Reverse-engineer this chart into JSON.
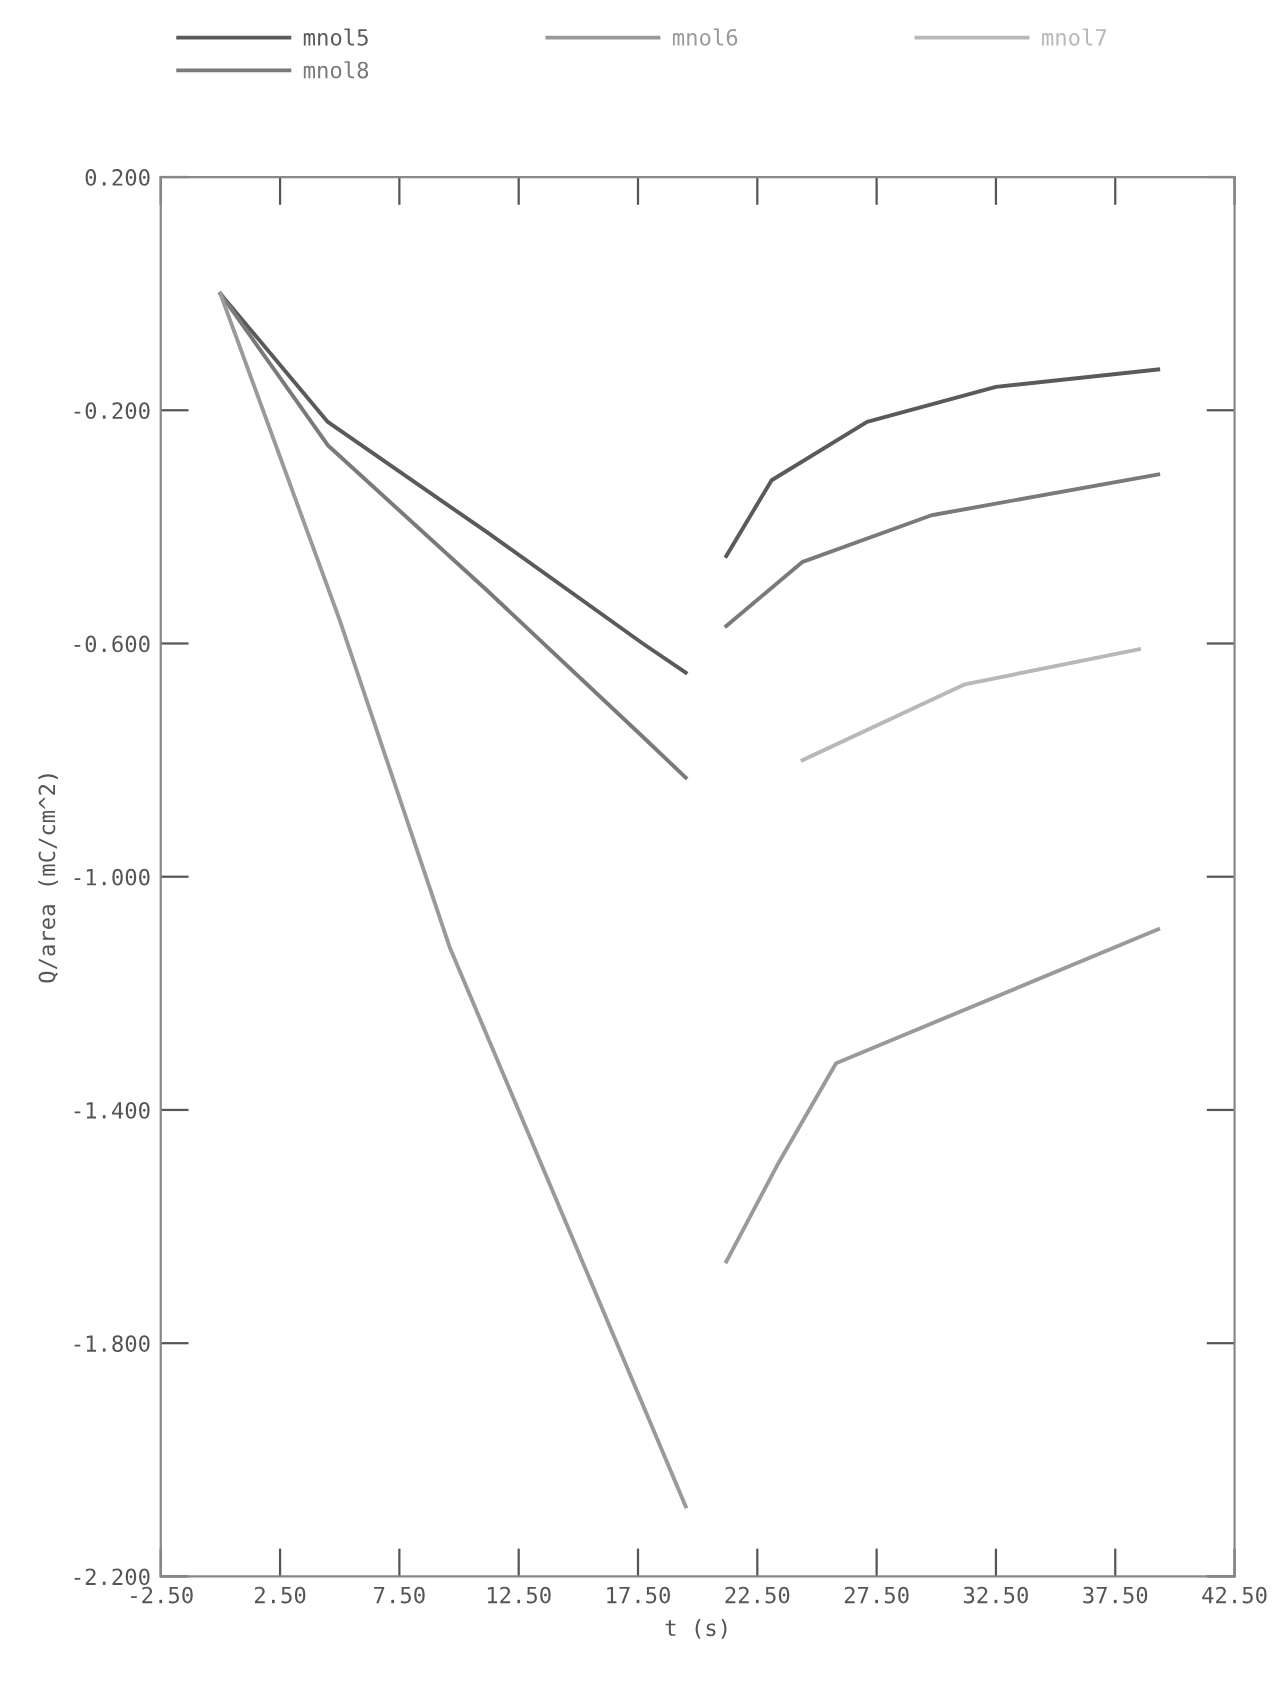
{
  "chart_data": {
    "type": "line",
    "xlabel": "t (s)",
    "ylabel": "Q/area (mC/cm^2)",
    "xlim": [
      -2.5,
      42.5
    ],
    "ylim": [
      -2.2,
      0.2
    ],
    "xticks": [
      {
        "value": -2.5,
        "label": "-2.50"
      },
      {
        "value": 2.5,
        "label": "2.50"
      },
      {
        "value": 7.5,
        "label": "7.50"
      },
      {
        "value": 12.5,
        "label": "12.50"
      },
      {
        "value": 17.5,
        "label": "17.50"
      },
      {
        "value": 22.5,
        "label": "22.50"
      },
      {
        "value": 27.5,
        "label": "27.50"
      },
      {
        "value": 32.5,
        "label": "32.50"
      },
      {
        "value": 37.5,
        "label": "37.50"
      },
      {
        "value": 42.5,
        "label": "42.50"
      }
    ],
    "yticks": [
      {
        "value": 0.2,
        "label": "0.200"
      },
      {
        "value": -0.2,
        "label": "-0.200"
      },
      {
        "value": -0.6,
        "label": "-0.600"
      },
      {
        "value": -1.0,
        "label": "-1.000"
      },
      {
        "value": -1.4,
        "label": "-1.400"
      },
      {
        "value": -1.8,
        "label": "-1.800"
      },
      {
        "value": -2.2,
        "label": "-2.200"
      }
    ],
    "grid": false,
    "legend": "top",
    "series": [
      {
        "name": "mnol5",
        "color": "#5a5a5a",
        "x": [
          0,
          4.5,
          11.2,
          17.7,
          19.5,
          20.5,
          21.2,
          23.1,
          27.1,
          32.5,
          39.3
        ],
        "values": [
          0.0,
          -0.22,
          -0.41,
          -0.6,
          -0.65,
          null,
          -0.45,
          -0.32,
          -0.22,
          -0.16,
          -0.13
        ]
      },
      {
        "name": "mnol8",
        "color": "#7a7a7a",
        "x": [
          0,
          4.5,
          11.2,
          17.7,
          19.5,
          20.5,
          21.2,
          24.4,
          29.8,
          39.3
        ],
        "values": [
          0.0,
          -0.26,
          -0.51,
          -0.76,
          -0.83,
          null,
          -0.57,
          -0.46,
          -0.38,
          -0.31
        ]
      },
      {
        "name": "mnol6",
        "color": "#9a9a9a",
        "x": [
          0,
          5.0,
          9.6,
          19.5,
          20.5,
          21.2,
          23.4,
          25.8,
          39.3
        ],
        "values": [
          0.0,
          -0.56,
          -1.12,
          -2.08,
          null,
          -1.66,
          -1.49,
          -1.32,
          -1.09
        ]
      },
      {
        "name": "mnol7",
        "color": "#b8b8b8",
        "x": [
          24.4,
          31.2,
          38.5
        ],
        "values": [
          -0.8,
          -0.67,
          -0.61
        ]
      }
    ]
  }
}
